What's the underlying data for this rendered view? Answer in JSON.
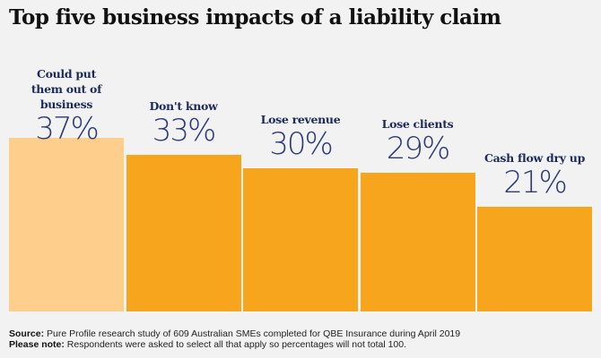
{
  "chart_data": {
    "type": "bar",
    "title": "Top five business impacts of a liability claim",
    "categories": [
      "Could put them out of business",
      "Don't know",
      "Lose revenue",
      "Lose clients",
      "Cash flow dry up"
    ],
    "values": [
      37,
      33,
      30,
      29,
      21
    ],
    "value_labels": [
      "37%",
      "33%",
      "30%",
      "29%",
      "21%"
    ],
    "colors": [
      "#fecf8c",
      "#f7a51d",
      "#f7a51d",
      "#f7a51d",
      "#f7a51d"
    ],
    "ylim": [
      0,
      37
    ],
    "grid": false,
    "xlabel": "",
    "ylabel": ""
  },
  "footer": {
    "source_label": "Source:",
    "source_text": "Pure Profile research study of 609 Australian SMEs completed for QBE Insurance during April 2019",
    "note_label": "Please note:",
    "note_text": "Respondents were asked to select all that apply so percentages will not total 100."
  }
}
